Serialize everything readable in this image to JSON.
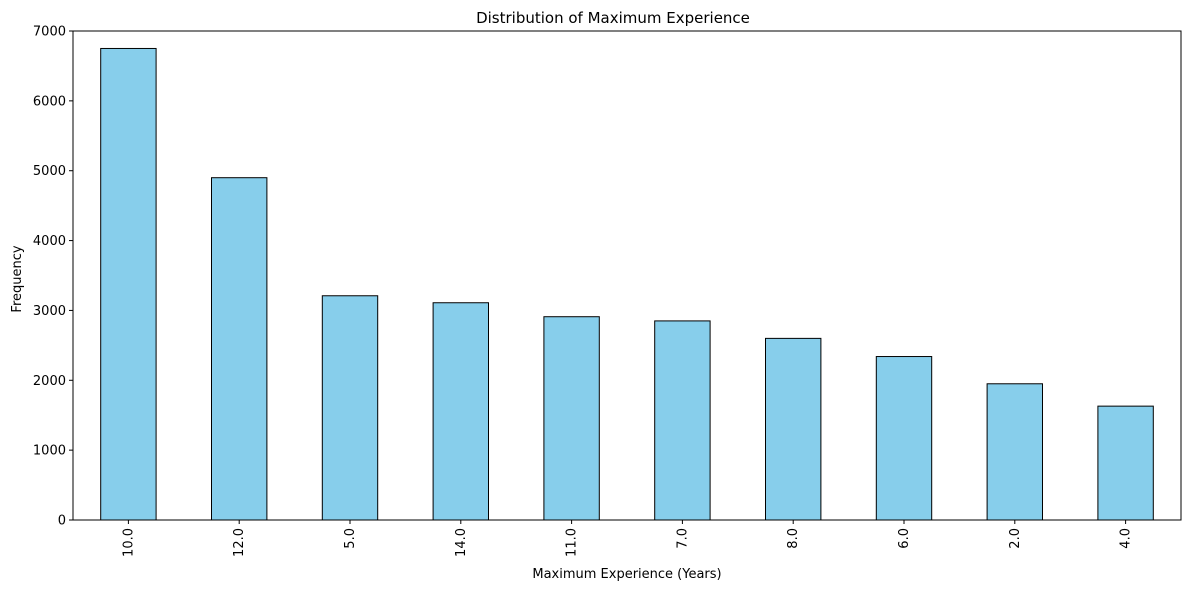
{
  "chart_data": {
    "type": "bar",
    "title": "Distribution of Maximum Experience",
    "xlabel": "Maximum Experience (Years)",
    "ylabel": "Frequency",
    "categories": [
      "10.0",
      "12.0",
      "5.0",
      "14.0",
      "11.0",
      "7.0",
      "8.0",
      "6.0",
      "2.0",
      "4.0"
    ],
    "values": [
      6750,
      4900,
      3210,
      3110,
      2910,
      2850,
      2600,
      2340,
      1950,
      1630
    ],
    "ylim": [
      0,
      7000
    ],
    "yticks": [
      "0",
      "1000",
      "2000",
      "3000",
      "4000",
      "5000",
      "6000",
      "7000"
    ],
    "grid": false,
    "x_tick_rotation": "vertical",
    "bar_color": "#87CEEB",
    "edge_color": "#000000"
  }
}
